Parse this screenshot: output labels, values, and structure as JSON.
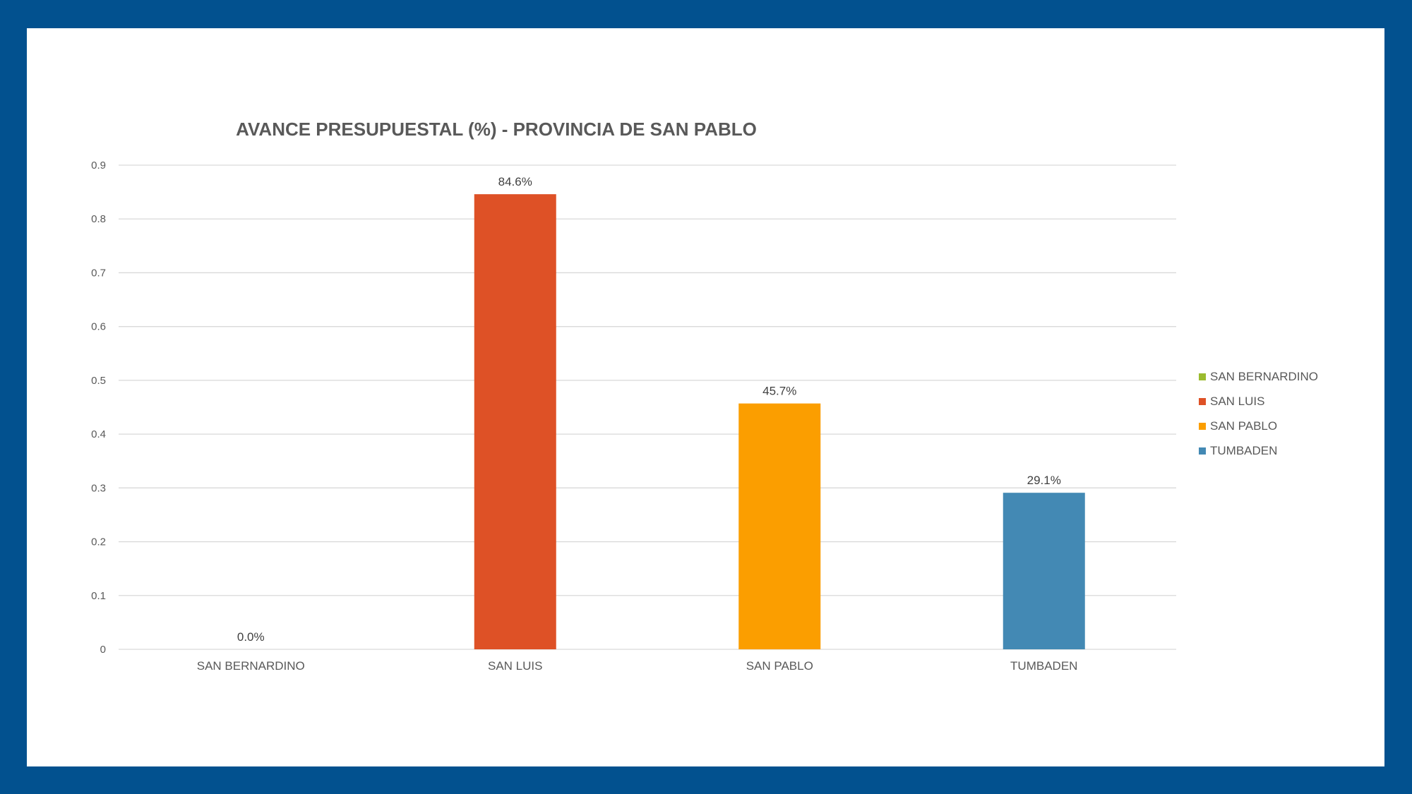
{
  "chart_data": {
    "type": "bar",
    "title": "AVANCE PRESUPUESTAL (%) - PROVINCIA DE SAN PABLO",
    "categories": [
      "SAN BERNARDINO",
      "SAN LUIS",
      "SAN PABLO",
      "TUMBADEN"
    ],
    "values": [
      0.0,
      0.846,
      0.457,
      0.291
    ],
    "data_labels": [
      "0.0%",
      "84.6%",
      "45.7%",
      "29.1%"
    ],
    "colors": [
      "#9bbb2f",
      "#de5126",
      "#fb9e00",
      "#4389b4"
    ],
    "ylim": [
      0,
      0.9
    ],
    "yticks": [
      0,
      0.1,
      0.2,
      0.3,
      0.4,
      0.5,
      0.6,
      0.7,
      0.8,
      0.9
    ],
    "ytick_labels": [
      "0",
      "0.1",
      "0.2",
      "0.3",
      "0.4",
      "0.5",
      "0.6",
      "0.7",
      "0.8",
      "0.9"
    ],
    "xlabel": "",
    "ylabel": "",
    "grid": true,
    "legend": {
      "position": "right",
      "entries": [
        "SAN BERNARDINO",
        "SAN LUIS",
        "SAN PABLO",
        "TUMBADEN"
      ]
    }
  }
}
